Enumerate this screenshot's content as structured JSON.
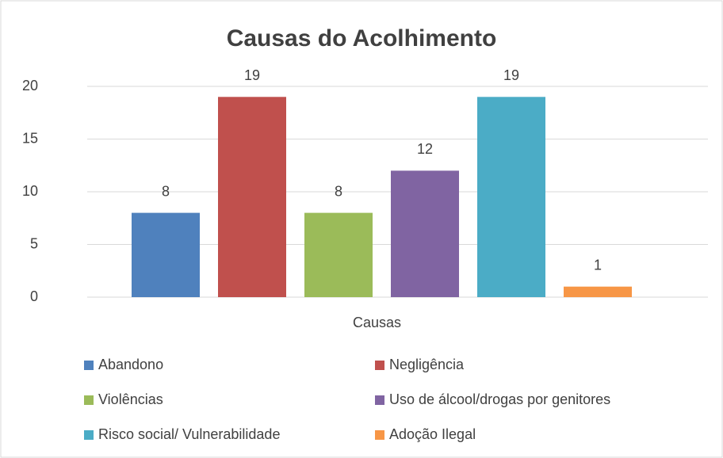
{
  "chart_data": {
    "type": "bar",
    "title": "Causas do Acolhimento",
    "categories": [
      "Causas"
    ],
    "series": [
      {
        "name": "Abandono",
        "color": "#4f81bd",
        "values": [
          8
        ]
      },
      {
        "name": "Negligência",
        "color": "#c0504d",
        "values": [
          19
        ]
      },
      {
        "name": "Violências",
        "color": "#9bbb59",
        "values": [
          8
        ]
      },
      {
        "name": "Uso de álcool/drogas por genitores",
        "color": "#8064a2",
        "values": [
          12
        ]
      },
      {
        "name": "Risco social/ Vulnerabilidade",
        "color": "#4bacc6",
        "values": [
          19
        ]
      },
      {
        "name": "Adoção Ilegal",
        "color": "#f79646",
        "values": [
          1
        ]
      }
    ],
    "ylim": [
      0,
      20
    ],
    "yticks": [
      0,
      5,
      10,
      15,
      20
    ],
    "grid": true,
    "legend": "bottom"
  }
}
